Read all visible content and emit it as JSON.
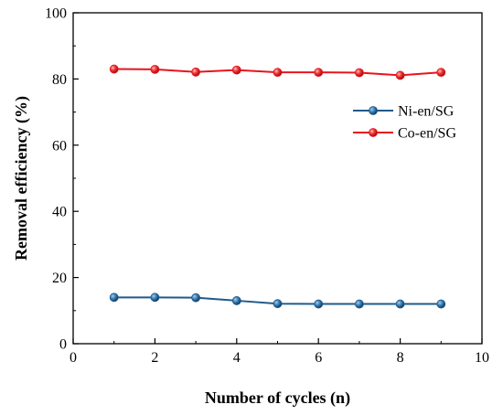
{
  "chart_data": {
    "type": "line",
    "xlabel": "Number of cycles (n)",
    "ylabel": "Removal efficiency (%)",
    "xlim": [
      0,
      10
    ],
    "ylim": [
      0,
      100
    ],
    "xticks": [
      0,
      2,
      4,
      6,
      8,
      10
    ],
    "yticks": [
      0,
      20,
      40,
      60,
      80,
      100
    ],
    "grid": false,
    "legend_position": "center-right",
    "x": [
      1,
      2,
      3,
      4,
      5,
      6,
      7,
      8,
      9
    ],
    "series": [
      {
        "name": "Ni-en/SG",
        "color": "#1f5a8a",
        "values": [
          14,
          14,
          13.9,
          13,
          12.1,
          12,
          12,
          12,
          12
        ]
      },
      {
        "name": "Co-en/SG",
        "color": "#e8141c",
        "values": [
          83,
          82.9,
          82.1,
          82.7,
          82,
          82,
          81.9,
          81.1,
          82
        ]
      }
    ]
  }
}
